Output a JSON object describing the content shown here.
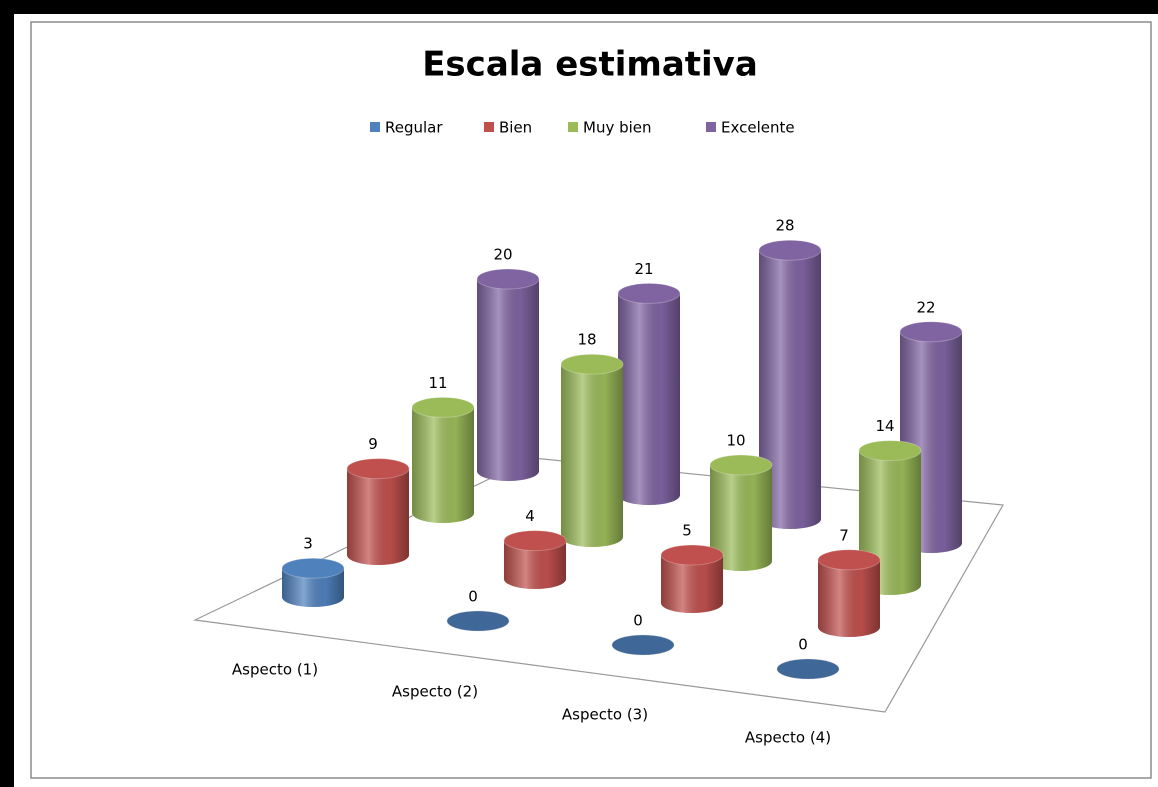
{
  "chart_data": {
    "type": "bar3d",
    "title": "Escala estimativa",
    "categories": [
      "Aspecto (1)",
      "Aspecto (2)",
      "Aspecto (3)",
      "Aspecto (4)"
    ],
    "series": [
      {
        "name": "Regular",
        "color": "#4f81bd",
        "values": [
          3,
          0,
          0,
          0
        ]
      },
      {
        "name": "Bien",
        "color": "#c0504d",
        "values": [
          9,
          4,
          5,
          7
        ]
      },
      {
        "name": "Muy bien",
        "color": "#9bbb59",
        "values": [
          11,
          18,
          10,
          14
        ]
      },
      {
        "name": "Excelente",
        "color": "#8064a2",
        "values": [
          20,
          21,
          28,
          22
        ]
      }
    ]
  }
}
